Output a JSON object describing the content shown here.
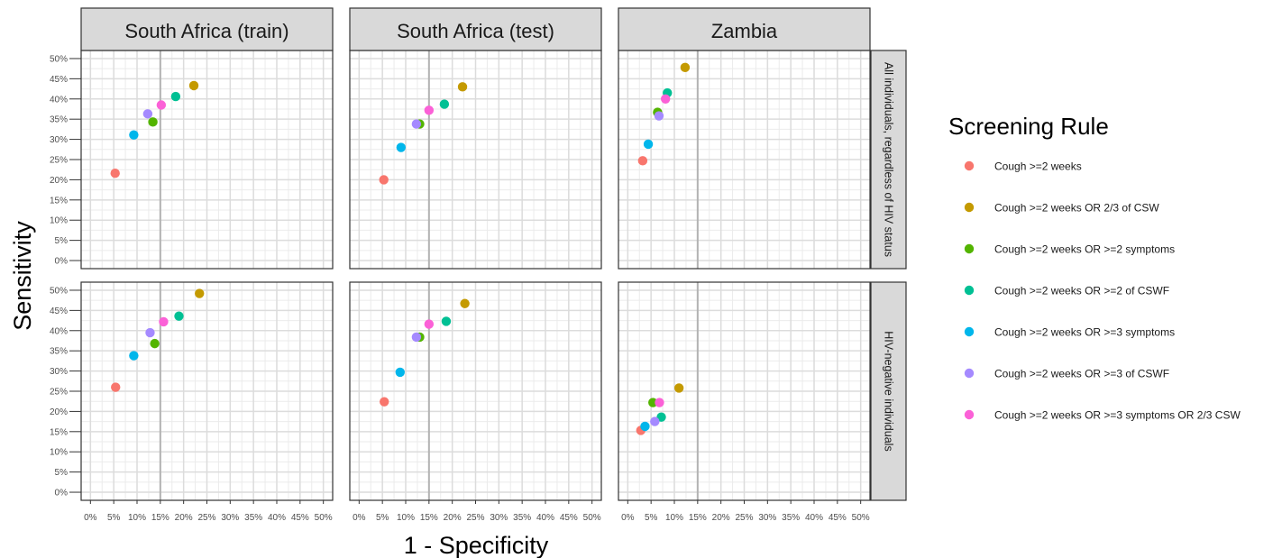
{
  "chart_data": {
    "type": "scatter",
    "xlabel": "1 - Specificity",
    "ylabel": "Sensitivity",
    "xlim": [
      -0.02,
      0.52
    ],
    "ylim": [
      -0.02,
      0.52
    ],
    "x_ticks": [
      "0%",
      "5%",
      "10%",
      "15%",
      "20%",
      "25%",
      "30%",
      "35%",
      "40%",
      "45%",
      "50%"
    ],
    "y_ticks": [
      "0%",
      "5%",
      "10%",
      "15%",
      "20%",
      "25%",
      "30%",
      "35%",
      "40%",
      "45%",
      "50%"
    ],
    "reference_line_x": 0.15,
    "grid": true,
    "columns": [
      "South Africa (train)",
      "South Africa (test)",
      "Zambia"
    ],
    "rows": [
      "All individuals, regardless of HIV status",
      "HIV-negative individuals"
    ],
    "legend": {
      "title": "Screening Rule",
      "placement": "right",
      "entries": [
        {
          "label": "Cough >=2 weeks",
          "color": "#F8766D"
        },
        {
          "label": "Cough >=2 weeks OR 2/3 of CSW",
          "color": "#C49A00"
        },
        {
          "label": "Cough >=2 weeks OR >=2 symptoms",
          "color": "#53B400"
        },
        {
          "label": "Cough >=2 weeks OR >=2 of CSWF",
          "color": "#00C094"
        },
        {
          "label": "Cough >=2 weeks OR >=3 symptoms",
          "color": "#00B6EB"
        },
        {
          "label": "Cough >=2 weeks OR >=3 of CSWF",
          "color": "#A58AFF"
        },
        {
          "label": "Cough >=2 weeks OR >=3 symptoms OR 2/3 CSW",
          "color": "#FB61D7"
        }
      ]
    },
    "panels": [
      {
        "row": 0,
        "col": 0,
        "points": [
          [
            0.053,
            0.216
          ],
          [
            0.222,
            0.433
          ],
          [
            0.134,
            0.343
          ],
          [
            0.183,
            0.406
          ],
          [
            0.093,
            0.311
          ],
          [
            0.123,
            0.363
          ],
          [
            0.152,
            0.385
          ]
        ]
      },
      {
        "row": 0,
        "col": 1,
        "points": [
          [
            0.053,
            0.2
          ],
          [
            0.222,
            0.43
          ],
          [
            0.13,
            0.338
          ],
          [
            0.183,
            0.387
          ],
          [
            0.09,
            0.28
          ],
          [
            0.123,
            0.338
          ],
          [
            0.15,
            0.372
          ]
        ]
      },
      {
        "row": 0,
        "col": 2,
        "points": [
          [
            0.032,
            0.247
          ],
          [
            0.123,
            0.478
          ],
          [
            0.064,
            0.367
          ],
          [
            0.085,
            0.415
          ],
          [
            0.044,
            0.288
          ],
          [
            0.067,
            0.358
          ],
          [
            0.081,
            0.4
          ]
        ]
      },
      {
        "row": 1,
        "col": 0,
        "points": [
          [
            0.054,
            0.26
          ],
          [
            0.234,
            0.492
          ],
          [
            0.138,
            0.368
          ],
          [
            0.19,
            0.436
          ],
          [
            0.093,
            0.338
          ],
          [
            0.128,
            0.395
          ],
          [
            0.157,
            0.422
          ]
        ]
      },
      {
        "row": 1,
        "col": 1,
        "points": [
          [
            0.054,
            0.224
          ],
          [
            0.227,
            0.467
          ],
          [
            0.13,
            0.384
          ],
          [
            0.187,
            0.423
          ],
          [
            0.088,
            0.297
          ],
          [
            0.123,
            0.384
          ],
          [
            0.15,
            0.416
          ]
        ]
      },
      {
        "row": 1,
        "col": 2,
        "points": [
          [
            0.028,
            0.153
          ],
          [
            0.11,
            0.258
          ],
          [
            0.054,
            0.222
          ],
          [
            0.072,
            0.186
          ],
          [
            0.037,
            0.163
          ],
          [
            0.058,
            0.175
          ],
          [
            0.068,
            0.222
          ]
        ]
      }
    ]
  }
}
